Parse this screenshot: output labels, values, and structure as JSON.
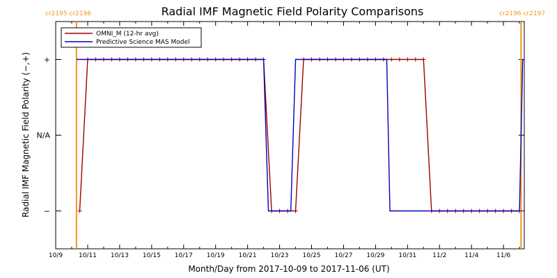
{
  "chart_data": {
    "type": "line",
    "title": "Radial IMF Magnetic Field Polarity Comparisons",
    "xlabel": "Month/Day from 2017-10-09 to 2017-11-06 (UT)",
    "ylabel": "Radial IMF Magnetic Field Polarity (−,+)",
    "x_start": "2017-10-09",
    "x_end": "2017-11-06",
    "xlim_days": [
      0,
      29.3
    ],
    "ylim": [
      -1.5,
      1.5
    ],
    "x_ticks": [
      {
        "day": 0,
        "label": "10/9"
      },
      {
        "day": 2,
        "label": "10/11"
      },
      {
        "day": 4,
        "label": "10/13"
      },
      {
        "day": 6,
        "label": "10/15"
      },
      {
        "day": 8,
        "label": "10/17"
      },
      {
        "day": 10,
        "label": "10/19"
      },
      {
        "day": 12,
        "label": "10/21"
      },
      {
        "day": 14,
        "label": "10/23"
      },
      {
        "day": 16,
        "label": "10/25"
      },
      {
        "day": 18,
        "label": "10/27"
      },
      {
        "day": 20,
        "label": "10/29"
      },
      {
        "day": 22,
        "label": "10/31"
      },
      {
        "day": 24,
        "label": "11/2"
      },
      {
        "day": 26,
        "label": "11/4"
      },
      {
        "day": 28,
        "label": "11/6"
      }
    ],
    "y_ticks": [
      {
        "value": 1,
        "label": "+"
      },
      {
        "value": 0,
        "label": "N/A"
      },
      {
        "value": -1,
        "label": "−"
      }
    ],
    "carrington_markers": [
      {
        "day": 1.3,
        "label": "cr2195 cr2196"
      },
      {
        "day": 29.1,
        "label": "cr2196 cr2197"
      }
    ],
    "legend": {
      "placement": "top-left",
      "entries": [
        {
          "name": "OMNI_M (12-hr avg)",
          "color": "#a00000"
        },
        {
          "name": "Predictive Science MAS Model",
          "color": "#0000c0"
        }
      ]
    },
    "series": [
      {
        "name": "OMNI_M (12-hr avg)",
        "color": "#a00000",
        "markers": true,
        "x": [
          1.5,
          2.0,
          2.5,
          3.0,
          3.5,
          4.0,
          4.5,
          5.0,
          5.5,
          6.0,
          6.5,
          7.0,
          7.5,
          8.0,
          8.5,
          9.0,
          9.5,
          10.0,
          10.5,
          11.0,
          11.5,
          12.0,
          12.5,
          13.0,
          13.5,
          14.0,
          14.5,
          15.0,
          15.5,
          16.0,
          16.5,
          17.0,
          17.5,
          18.0,
          18.5,
          19.0,
          19.5,
          20.0,
          20.5,
          21.0,
          21.5,
          22.0,
          22.5,
          23.0,
          23.5,
          24.0,
          24.5,
          25.0,
          25.5,
          26.0,
          26.5,
          27.0,
          27.5,
          28.0,
          28.5,
          29.0
        ],
        "y": [
          -1,
          1,
          1,
          1,
          1,
          1,
          1,
          1,
          1,
          1,
          1,
          1,
          1,
          1,
          1,
          1,
          1,
          1,
          1,
          1,
          1,
          1,
          1,
          1,
          -1,
          -1,
          -1,
          -1,
          1,
          1,
          1,
          1,
          1,
          1,
          1,
          1,
          1,
          1,
          1,
          1,
          1,
          1,
          1,
          1,
          -1,
          -1,
          -1,
          -1,
          -1,
          -1,
          -1,
          -1,
          -1,
          -1,
          -1,
          -1
        ]
      },
      {
        "name": "Predictive Science MAS Model",
        "color": "#0000c0",
        "markers": false,
        "x": [
          1.3,
          12.9,
          13.0,
          13.3,
          13.4,
          14.7,
          15.0,
          20.7,
          20.9,
          29.0,
          29.2
        ],
        "y": [
          1,
          1,
          1,
          -1,
          -1,
          -1,
          1,
          1,
          -1,
          -1,
          1
        ]
      }
    ]
  }
}
